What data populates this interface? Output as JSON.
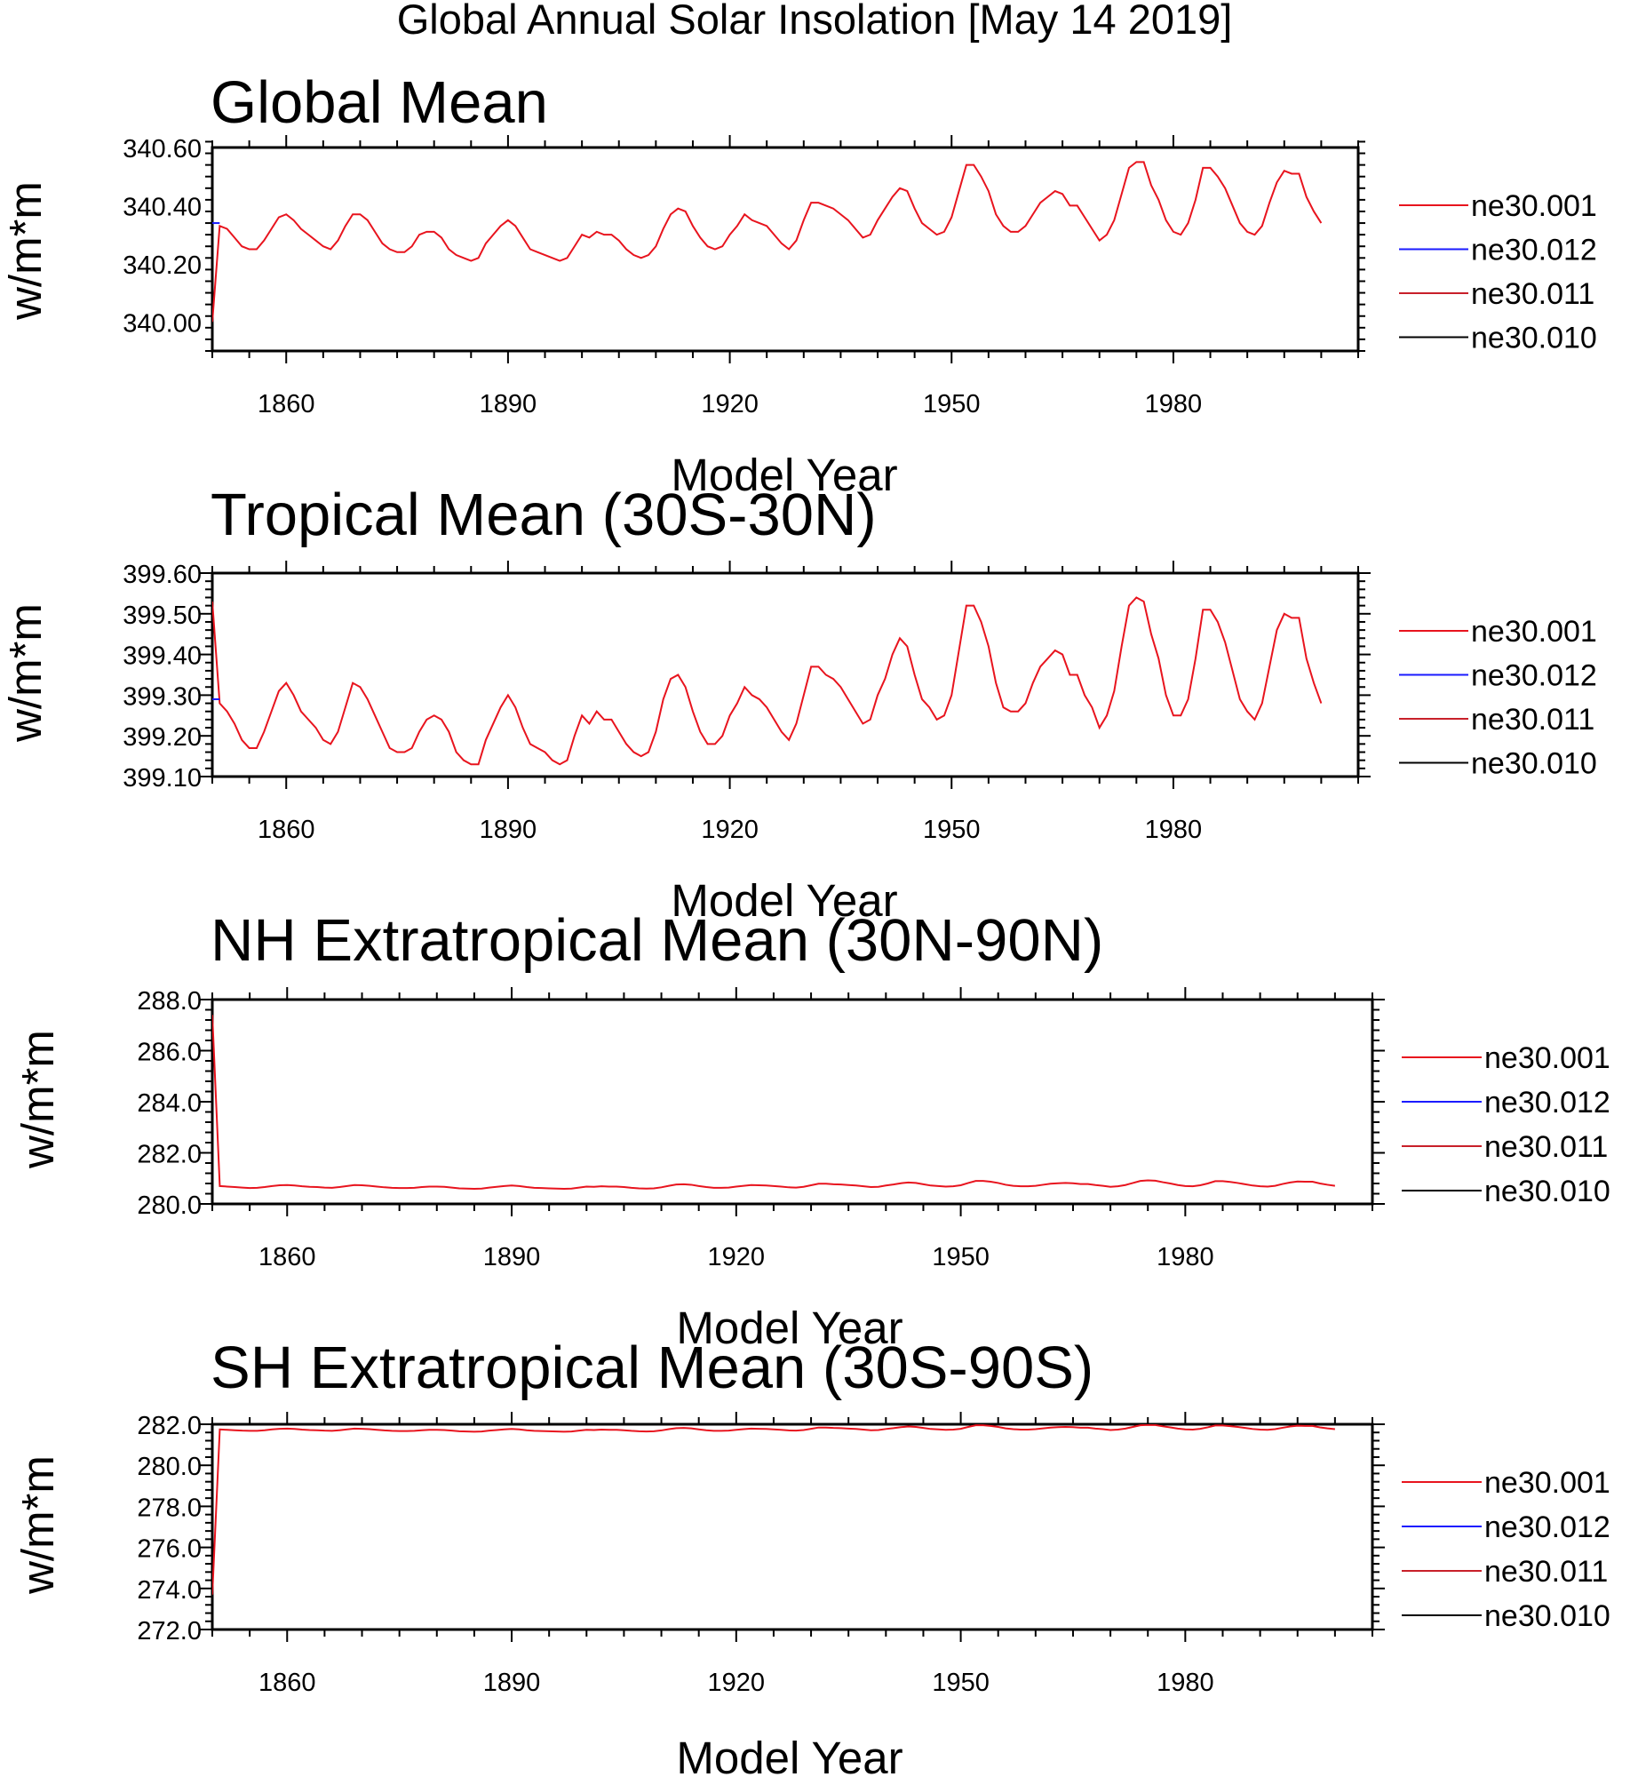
{
  "figure_title": "Global Annual Solar Insolation [May 14 2019]",
  "chart_data": [
    {
      "type": "line",
      "title": "Global Mean",
      "xlabel": "Model Year",
      "ylabel": "w/m*m",
      "xlim": [
        1850,
        2005
      ],
      "ylim": [
        339.9,
        340.6
      ],
      "xticks": [
        1860,
        1890,
        1920,
        1950,
        1980
      ],
      "xtick_labels": [
        "1860",
        "1890",
        "1920",
        "1950",
        "1980"
      ],
      "yticks": [
        340.0,
        340.2,
        340.4,
        340.6
      ],
      "ytick_labels": [
        "340.00",
        "340.20",
        "340.40",
        "340.60"
      ],
      "legend": [
        "ne30.001",
        "ne30.012",
        "ne30.011",
        "ne30.010"
      ],
      "legend_colors": [
        "#e8141e",
        "#1a1aff",
        "#c8202a",
        "#000000"
      ],
      "first_x": 1850,
      "series": [
        {
          "name": "ne30.001",
          "color": "#e8141e",
          "values": [
            340.0,
            340.33,
            340.32,
            340.29,
            340.26,
            340.25,
            340.25,
            340.28,
            340.32,
            340.36,
            340.37,
            340.35,
            340.32,
            340.3,
            340.28,
            340.26,
            340.25,
            340.28,
            340.33,
            340.37,
            340.37,
            340.35,
            340.31,
            340.27,
            340.25,
            340.24,
            340.24,
            340.26,
            340.3,
            340.31,
            340.31,
            340.29,
            340.25,
            340.23,
            340.22,
            340.21,
            340.22,
            340.27,
            340.3,
            340.33,
            340.35,
            340.33,
            340.29,
            340.25,
            340.24,
            340.23,
            340.22,
            340.21,
            340.22,
            340.26,
            340.3,
            340.29,
            340.31,
            340.3,
            340.3,
            340.28,
            340.25,
            340.23,
            340.22,
            340.23,
            340.26,
            340.32,
            340.37,
            340.39,
            340.38,
            340.33,
            340.29,
            340.26,
            340.25,
            340.26,
            340.3,
            340.33,
            340.37,
            340.35,
            340.34,
            340.33,
            340.3,
            340.27,
            340.25,
            340.28,
            340.35,
            340.41,
            340.41,
            340.4,
            340.39,
            340.37,
            340.35,
            340.32,
            340.29,
            340.3,
            340.35,
            340.39,
            340.43,
            340.46,
            340.45,
            340.39,
            340.34,
            340.32,
            340.3,
            340.31,
            340.36,
            340.45,
            340.54,
            340.54,
            340.5,
            340.45,
            340.37,
            340.33,
            340.31,
            340.31,
            340.33,
            340.37,
            340.41,
            340.43,
            340.45,
            340.44,
            340.4,
            340.4,
            340.36,
            340.32,
            340.28,
            340.3,
            340.35,
            340.44,
            340.53,
            340.55,
            340.55,
            340.47,
            340.42,
            340.35,
            340.31,
            340.3,
            340.34,
            340.42,
            340.53,
            340.53,
            340.5,
            340.46,
            340.4,
            340.34,
            340.31,
            340.3,
            340.33,
            340.41,
            340.48,
            340.52,
            340.51,
            340.51,
            340.43,
            340.38,
            340.34
          ]
        },
        {
          "name": "ne30.012",
          "color": "#1a1aff",
          "values": [
            340.34,
            340.34
          ]
        }
      ]
    },
    {
      "type": "line",
      "title": "Tropical Mean (30S-30N)",
      "xlabel": "Model Year",
      "ylabel": "w/m*m",
      "xlim": [
        1850,
        2005
      ],
      "ylim": [
        399.1,
        399.6
      ],
      "xticks": [
        1860,
        1890,
        1920,
        1950,
        1980
      ],
      "xtick_labels": [
        "1860",
        "1890",
        "1920",
        "1950",
        "1980"
      ],
      "yticks": [
        399.1,
        399.2,
        399.3,
        399.4,
        399.5,
        399.6
      ],
      "ytick_labels": [
        "399.10",
        "399.20",
        "399.30",
        "399.40",
        "399.50",
        "399.60"
      ],
      "legend": [
        "ne30.001",
        "ne30.012",
        "ne30.011",
        "ne30.010"
      ],
      "legend_colors": [
        "#e8141e",
        "#1a1aff",
        "#c8202a",
        "#000000"
      ],
      "first_x": 1850,
      "series": [
        {
          "name": "ne30.001",
          "color": "#e8141e",
          "values": [
            399.53,
            399.28,
            399.26,
            399.23,
            399.19,
            399.17,
            399.17,
            399.21,
            399.26,
            399.31,
            399.33,
            399.3,
            399.26,
            399.24,
            399.22,
            399.19,
            399.18,
            399.21,
            399.27,
            399.33,
            399.32,
            399.29,
            399.25,
            399.21,
            399.17,
            399.16,
            399.16,
            399.17,
            399.21,
            399.24,
            399.25,
            399.24,
            399.21,
            399.16,
            399.14,
            399.13,
            399.13,
            399.19,
            399.23,
            399.27,
            399.3,
            399.27,
            399.22,
            399.18,
            399.17,
            399.16,
            399.14,
            399.13,
            399.14,
            399.2,
            399.25,
            399.23,
            399.26,
            399.24,
            399.24,
            399.21,
            399.18,
            399.16,
            399.15,
            399.16,
            399.21,
            399.29,
            399.34,
            399.35,
            399.32,
            399.26,
            399.21,
            399.18,
            399.18,
            399.2,
            399.25,
            399.28,
            399.32,
            399.3,
            399.29,
            399.27,
            399.24,
            399.21,
            399.19,
            399.23,
            399.3,
            399.37,
            399.37,
            399.35,
            399.34,
            399.32,
            399.29,
            399.26,
            399.23,
            399.24,
            399.3,
            399.34,
            399.4,
            399.44,
            399.42,
            399.35,
            399.29,
            399.27,
            399.24,
            399.25,
            399.3,
            399.41,
            399.52,
            399.52,
            399.48,
            399.42,
            399.33,
            399.27,
            399.26,
            399.26,
            399.28,
            399.33,
            399.37,
            399.39,
            399.41,
            399.4,
            399.35,
            399.35,
            399.3,
            399.27,
            399.22,
            399.25,
            399.31,
            399.42,
            399.52,
            399.54,
            399.53,
            399.45,
            399.39,
            399.3,
            399.25,
            399.25,
            399.29,
            399.39,
            399.51,
            399.51,
            399.48,
            399.43,
            399.36,
            399.29,
            399.26,
            399.24,
            399.28,
            399.37,
            399.46,
            399.5,
            399.49,
            399.49,
            399.39,
            399.33,
            399.28
          ]
        },
        {
          "name": "ne30.012",
          "color": "#1a1aff",
          "values": [
            399.29,
            399.29
          ]
        }
      ]
    },
    {
      "type": "line",
      "title": "NH Extratropical Mean (30N-90N)",
      "xlabel": "Model Year",
      "ylabel": "w/m*m",
      "xlim": [
        1850,
        2005
      ],
      "ylim": [
        280.0,
        288.0
      ],
      "xticks": [
        1860,
        1890,
        1920,
        1950,
        1980
      ],
      "xtick_labels": [
        "1860",
        "1890",
        "1920",
        "1950",
        "1980"
      ],
      "yticks": [
        280.0,
        282.0,
        284.0,
        286.0,
        288.0
      ],
      "ytick_labels": [
        "280.0",
        "282.0",
        "284.0",
        "286.0",
        "288.0"
      ],
      "legend": [
        "ne30.001",
        "ne30.012",
        "ne30.011",
        "ne30.010"
      ],
      "legend_colors": [
        "#e8141e",
        "#1a1aff",
        "#c8202a",
        "#000000"
      ],
      "first_x": 1850,
      "series": [
        {
          "name": "ne30.001",
          "color": "#e8141e",
          "values": [
            287.4,
            280.7,
            280.68,
            280.66,
            280.64,
            280.62,
            280.63,
            280.66,
            280.7,
            280.73,
            280.74,
            280.72,
            280.69,
            280.67,
            280.66,
            280.64,
            280.63,
            280.66,
            280.7,
            280.74,
            280.73,
            280.71,
            280.68,
            280.65,
            280.63,
            280.62,
            280.62,
            280.63,
            280.66,
            280.68,
            280.68,
            280.67,
            280.64,
            280.61,
            280.6,
            280.59,
            280.6,
            280.64,
            280.67,
            280.7,
            280.72,
            280.7,
            280.66,
            280.63,
            280.62,
            280.61,
            280.6,
            280.59,
            280.6,
            280.64,
            280.68,
            280.67,
            280.69,
            280.68,
            280.68,
            280.66,
            280.63,
            280.61,
            280.6,
            280.61,
            280.65,
            280.71,
            280.76,
            280.77,
            280.75,
            280.7,
            280.66,
            280.63,
            280.63,
            280.64,
            280.68,
            280.71,
            280.74,
            280.73,
            280.72,
            280.7,
            280.68,
            280.65,
            280.64,
            280.67,
            280.73,
            280.79,
            280.79,
            280.77,
            280.76,
            280.74,
            280.72,
            280.69,
            280.66,
            280.67,
            280.72,
            280.76,
            280.81,
            280.84,
            280.82,
            280.77,
            280.72,
            280.7,
            280.68,
            280.69,
            280.73,
            280.82,
            280.9,
            280.9,
            280.87,
            280.82,
            280.75,
            280.71,
            280.69,
            280.69,
            280.71,
            280.75,
            280.79,
            280.81,
            280.82,
            280.81,
            280.78,
            280.78,
            280.74,
            280.71,
            280.67,
            280.69,
            280.74,
            280.82,
            280.9,
            280.92,
            280.91,
            280.85,
            280.8,
            280.74,
            280.7,
            280.69,
            280.73,
            280.8,
            280.89,
            280.89,
            280.86,
            280.82,
            280.77,
            280.72,
            280.69,
            280.68,
            280.71,
            280.78,
            280.84,
            280.88,
            280.87,
            280.87,
            280.8,
            280.75,
            280.71
          ]
        }
      ]
    },
    {
      "type": "line",
      "title": "SH Extratropical Mean (30S-90S)",
      "xlabel": "Model Year",
      "ylabel": "w/m*m",
      "xlim": [
        1850,
        2005
      ],
      "ylim": [
        272.0,
        282.0
      ],
      "xticks": [
        1860,
        1890,
        1920,
        1950,
        1980
      ],
      "xtick_labels": [
        "1860",
        "1890",
        "1920",
        "1950",
        "1980"
      ],
      "yticks": [
        272.0,
        274.0,
        276.0,
        278.0,
        280.0,
        282.0
      ],
      "ytick_labels": [
        "272.0",
        "274.0",
        "276.0",
        "278.0",
        "280.0",
        "282.0"
      ],
      "legend": [
        "ne30.001",
        "ne30.012",
        "ne30.011",
        "ne30.010"
      ],
      "legend_colors": [
        "#e8141e",
        "#1a1aff",
        "#c8202a",
        "#000000"
      ],
      "first_x": 1850,
      "series": [
        {
          "name": "ne30.001",
          "color": "#e8141e",
          "values": [
            273.7,
            281.75,
            281.73,
            281.71,
            281.69,
            281.68,
            281.68,
            281.71,
            281.75,
            281.78,
            281.79,
            281.77,
            281.74,
            281.72,
            281.71,
            281.69,
            281.68,
            281.71,
            281.75,
            281.79,
            281.78,
            281.76,
            281.73,
            281.7,
            281.68,
            281.67,
            281.67,
            281.68,
            281.71,
            281.73,
            281.73,
            281.72,
            281.69,
            281.66,
            281.65,
            281.64,
            281.65,
            281.69,
            281.72,
            281.75,
            281.77,
            281.75,
            281.71,
            281.68,
            281.67,
            281.66,
            281.65,
            281.64,
            281.65,
            281.69,
            281.73,
            281.72,
            281.74,
            281.73,
            281.73,
            281.71,
            281.68,
            281.66,
            281.65,
            281.66,
            281.7,
            281.76,
            281.81,
            281.82,
            281.8,
            281.75,
            281.71,
            281.68,
            281.68,
            281.69,
            281.73,
            281.76,
            281.79,
            281.78,
            281.77,
            281.75,
            281.73,
            281.7,
            281.69,
            281.72,
            281.78,
            281.84,
            281.84,
            281.82,
            281.81,
            281.79,
            281.77,
            281.74,
            281.71,
            281.72,
            281.77,
            281.81,
            281.86,
            281.89,
            281.87,
            281.82,
            281.77,
            281.75,
            281.73,
            281.74,
            281.78,
            281.87,
            281.95,
            281.95,
            281.92,
            281.87,
            281.8,
            281.76,
            281.74,
            281.74,
            281.76,
            281.8,
            281.84,
            281.86,
            281.87,
            281.86,
            281.83,
            281.83,
            281.79,
            281.76,
            281.72,
            281.74,
            281.79,
            281.87,
            281.95,
            281.97,
            281.96,
            281.9,
            281.85,
            281.79,
            281.75,
            281.74,
            281.78,
            281.85,
            281.94,
            281.94,
            281.91,
            281.87,
            281.82,
            281.77,
            281.74,
            281.73,
            281.76,
            281.83,
            281.89,
            281.93,
            281.92,
            281.92,
            281.85,
            281.8,
            281.76
          ]
        }
      ]
    }
  ]
}
